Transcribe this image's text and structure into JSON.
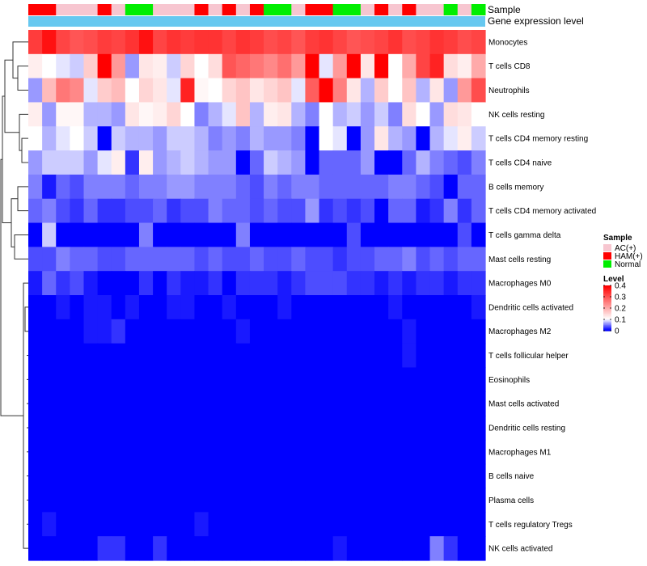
{
  "chart_data": {
    "type": "heatmap",
    "title": "",
    "column_tracks": [
      {
        "name": "Sample"
      },
      {
        "name": "Gene expression level"
      }
    ],
    "sample_groups": [
      "HAM(+)",
      "HAM(+)",
      "AC(+)",
      "AC(+)",
      "AC(+)",
      "HAM(+)",
      "AC(+)",
      "Normal",
      "Normal",
      "AC(+)",
      "AC(+)",
      "AC(+)",
      "HAM(+)",
      "AC(+)",
      "HAM(+)",
      "AC(+)",
      "HAM(+)",
      "Normal",
      "Normal",
      "AC(+)",
      "HAM(+)",
      "HAM(+)",
      "Normal",
      "Normal",
      "AC(+)",
      "HAM(+)",
      "AC(+)",
      "HAM(+)",
      "AC(+)",
      "AC(+)",
      "Normal",
      "AC(+)",
      "Normal"
    ],
    "group_colors": {
      "AC(+)": "#f7c6d0",
      "HAM(+)": "#ff0000",
      "Normal": "#00ee00"
    },
    "expression_track_color": "#66c8f0",
    "rows": [
      "Monocytes",
      "T cells CD8",
      "Neutrophils",
      "NK cells resting",
      "T cells CD4 memory resting",
      "T cells CD4 naive",
      "B cells memory",
      "T cells CD4 memory activated",
      "T cells gamma delta",
      "Mast cells resting",
      "Macrophages M0",
      "Dendritic cells activated",
      "Macrophages M2",
      "T cells follicular helper",
      "Eosinophils",
      "Mast cells activated",
      "Dendritic cells resting",
      "Macrophages M1",
      "B cells naive",
      "Plasma cells",
      "T cells regulatory  Tregs",
      "NK cells activated"
    ],
    "values": [
      [
        0.33,
        0.38,
        0.32,
        0.3,
        0.31,
        0.33,
        0.32,
        0.34,
        0.38,
        0.32,
        0.34,
        0.33,
        0.34,
        0.34,
        0.32,
        0.34,
        0.33,
        0.31,
        0.32,
        0.3,
        0.33,
        0.34,
        0.32,
        0.3,
        0.31,
        0.32,
        0.34,
        0.31,
        0.32,
        0.34,
        0.33,
        0.31,
        0.32
      ],
      [
        0.12,
        0.1,
        0.09,
        0.08,
        0.16,
        0.4,
        0.22,
        0.06,
        0.13,
        0.12,
        0.08,
        0.15,
        0.1,
        0.14,
        0.3,
        0.28,
        0.26,
        0.24,
        0.27,
        0.22,
        0.4,
        0.09,
        0.22,
        0.4,
        0.13,
        0.4,
        0.1,
        0.2,
        0.32,
        0.36,
        0.14,
        0.12,
        0.2
      ],
      [
        0.06,
        0.18,
        0.26,
        0.24,
        0.09,
        0.16,
        0.18,
        0.1,
        0.15,
        0.13,
        0.09,
        0.36,
        0.11,
        0.1,
        0.15,
        0.17,
        0.13,
        0.15,
        0.17,
        0.09,
        0.29,
        0.4,
        0.25,
        0.13,
        0.07,
        0.16,
        0.1,
        0.17,
        0.07,
        0.13,
        0.06,
        0.22,
        0.31
      ],
      [
        0.12,
        0.06,
        0.11,
        0.11,
        0.07,
        0.07,
        0.06,
        0.13,
        0.11,
        0.12,
        0.15,
        0.1,
        0.05,
        0.07,
        0.09,
        0.17,
        0.07,
        0.12,
        0.13,
        0.07,
        0.05,
        0.1,
        0.07,
        0.08,
        0.06,
        0.08,
        0.05,
        0.14,
        0.1,
        0.06,
        0.14,
        0.13,
        0.1
      ],
      [
        0.1,
        0.07,
        0.09,
        0.1,
        0.08,
        0.0,
        0.08,
        0.07,
        0.07,
        0.06,
        0.08,
        0.08,
        0.07,
        0.05,
        0.06,
        0.05,
        0.07,
        0.06,
        0.06,
        0.05,
        0.0,
        0.1,
        0.09,
        0.0,
        0.06,
        0.13,
        0.07,
        0.06,
        0.0,
        0.07,
        0.09,
        0.12,
        0.08
      ],
      [
        0.06,
        0.08,
        0.08,
        0.08,
        0.06,
        0.09,
        0.12,
        0.02,
        0.12,
        0.06,
        0.07,
        0.08,
        0.07,
        0.06,
        0.06,
        0.0,
        0.04,
        0.08,
        0.07,
        0.06,
        0.0,
        0.04,
        0.04,
        0.04,
        0.06,
        0.0,
        0.0,
        0.04,
        0.07,
        0.05,
        0.04,
        0.03,
        0.05
      ],
      [
        0.05,
        0.01,
        0.04,
        0.03,
        0.05,
        0.05,
        0.05,
        0.04,
        0.05,
        0.05,
        0.06,
        0.06,
        0.05,
        0.05,
        0.05,
        0.04,
        0.03,
        0.05,
        0.04,
        0.05,
        0.05,
        0.04,
        0.04,
        0.04,
        0.04,
        0.04,
        0.05,
        0.05,
        0.04,
        0.03,
        0.0,
        0.04,
        0.04
      ],
      [
        0.04,
        0.05,
        0.03,
        0.02,
        0.04,
        0.02,
        0.02,
        0.03,
        0.03,
        0.04,
        0.02,
        0.03,
        0.03,
        0.05,
        0.04,
        0.04,
        0.03,
        0.04,
        0.03,
        0.03,
        0.06,
        0.02,
        0.03,
        0.02,
        0.03,
        0.0,
        0.04,
        0.04,
        0.01,
        0.02,
        0.05,
        0.02,
        0.04
      ],
      [
        0.0,
        0.08,
        0.0,
        0.0,
        0.0,
        0.0,
        0.0,
        0.0,
        0.05,
        0.0,
        0.0,
        0.0,
        0.0,
        0.0,
        0.0,
        0.05,
        0.0,
        0.0,
        0.0,
        0.0,
        0.0,
        0.0,
        0.0,
        0.03,
        0.0,
        0.0,
        0.0,
        0.0,
        0.0,
        0.0,
        0.0,
        0.03,
        0.0
      ],
      [
        0.03,
        0.03,
        0.05,
        0.04,
        0.04,
        0.03,
        0.03,
        0.04,
        0.04,
        0.04,
        0.04,
        0.04,
        0.03,
        0.04,
        0.03,
        0.03,
        0.04,
        0.03,
        0.03,
        0.04,
        0.03,
        0.03,
        0.02,
        0.03,
        0.03,
        0.04,
        0.04,
        0.05,
        0.03,
        0.04,
        0.03,
        0.04,
        0.04
      ],
      [
        0.01,
        0.04,
        0.02,
        0.03,
        0.01,
        0.0,
        0.0,
        0.0,
        0.02,
        0.0,
        0.02,
        0.01,
        0.01,
        0.02,
        0.0,
        0.02,
        0.02,
        0.02,
        0.01,
        0.02,
        0.03,
        0.03,
        0.03,
        0.02,
        0.02,
        0.01,
        0.02,
        0.01,
        0.02,
        0.02,
        0.01,
        0.02,
        0.02
      ],
      [
        0.0,
        0.0,
        0.01,
        0.0,
        0.01,
        0.01,
        0.0,
        0.01,
        0.0,
        0.0,
        0.01,
        0.01,
        0.0,
        0.0,
        0.01,
        0.0,
        0.0,
        0.0,
        0.01,
        0.0,
        0.0,
        0.0,
        0.0,
        0.0,
        0.0,
        0.0,
        0.01,
        0.0,
        0.0,
        0.0,
        0.0,
        0.0,
        0.01
      ],
      [
        0.0,
        0.0,
        0.0,
        0.0,
        0.01,
        0.01,
        0.02,
        0.0,
        0.0,
        0.0,
        0.0,
        0.0,
        0.0,
        0.0,
        0.0,
        0.01,
        0.0,
        0.0,
        0.0,
        0.0,
        0.0,
        0.0,
        0.0,
        0.0,
        0.0,
        0.0,
        0.0,
        0.01,
        0.0,
        0.0,
        0.0,
        0.0,
        0.0
      ],
      [
        0.0,
        0.0,
        0.0,
        0.0,
        0.0,
        0.0,
        0.0,
        0.0,
        0.0,
        0.0,
        0.0,
        0.0,
        0.0,
        0.0,
        0.0,
        0.0,
        0.0,
        0.0,
        0.0,
        0.0,
        0.0,
        0.0,
        0.0,
        0.0,
        0.0,
        0.0,
        0.0,
        0.01,
        0.0,
        0.0,
        0.0,
        0.0,
        0.0
      ],
      [
        0.0,
        0.0,
        0.0,
        0.0,
        0.0,
        0.0,
        0.0,
        0.0,
        0.0,
        0.0,
        0.0,
        0.0,
        0.0,
        0.0,
        0.0,
        0.0,
        0.0,
        0.0,
        0.0,
        0.0,
        0.0,
        0.0,
        0.0,
        0.0,
        0.0,
        0.0,
        0.0,
        0.0,
        0.0,
        0.0,
        0.0,
        0.0,
        0.0
      ],
      [
        0.0,
        0.0,
        0.0,
        0.0,
        0.0,
        0.0,
        0.0,
        0.0,
        0.0,
        0.0,
        0.0,
        0.0,
        0.0,
        0.0,
        0.0,
        0.0,
        0.0,
        0.0,
        0.0,
        0.0,
        0.0,
        0.0,
        0.0,
        0.0,
        0.0,
        0.0,
        0.0,
        0.0,
        0.0,
        0.0,
        0.0,
        0.0,
        0.0
      ],
      [
        0.0,
        0.0,
        0.0,
        0.0,
        0.0,
        0.0,
        0.0,
        0.0,
        0.0,
        0.0,
        0.0,
        0.0,
        0.0,
        0.0,
        0.0,
        0.0,
        0.0,
        0.0,
        0.0,
        0.0,
        0.0,
        0.0,
        0.0,
        0.0,
        0.0,
        0.0,
        0.0,
        0.0,
        0.0,
        0.0,
        0.0,
        0.0,
        0.0
      ],
      [
        0.0,
        0.0,
        0.0,
        0.0,
        0.0,
        0.0,
        0.0,
        0.0,
        0.0,
        0.0,
        0.0,
        0.0,
        0.0,
        0.0,
        0.0,
        0.0,
        0.0,
        0.0,
        0.0,
        0.0,
        0.0,
        0.0,
        0.0,
        0.0,
        0.0,
        0.0,
        0.0,
        0.0,
        0.0,
        0.0,
        0.0,
        0.0,
        0.0
      ],
      [
        0.0,
        0.0,
        0.0,
        0.0,
        0.0,
        0.0,
        0.0,
        0.0,
        0.0,
        0.0,
        0.0,
        0.0,
        0.0,
        0.0,
        0.0,
        0.0,
        0.0,
        0.0,
        0.0,
        0.0,
        0.0,
        0.0,
        0.0,
        0.0,
        0.0,
        0.0,
        0.0,
        0.0,
        0.0,
        0.0,
        0.0,
        0.0,
        0.0
      ],
      [
        0.0,
        0.0,
        0.0,
        0.0,
        0.0,
        0.0,
        0.0,
        0.0,
        0.0,
        0.0,
        0.0,
        0.0,
        0.0,
        0.0,
        0.0,
        0.0,
        0.0,
        0.0,
        0.0,
        0.0,
        0.0,
        0.0,
        0.0,
        0.0,
        0.0,
        0.0,
        0.0,
        0.0,
        0.0,
        0.0,
        0.0,
        0.0,
        0.0
      ],
      [
        0.0,
        0.01,
        0.0,
        0.0,
        0.0,
        0.0,
        0.0,
        0.0,
        0.0,
        0.0,
        0.0,
        0.0,
        0.01,
        0.0,
        0.0,
        0.0,
        0.0,
        0.0,
        0.0,
        0.0,
        0.0,
        0.0,
        0.0,
        0.0,
        0.0,
        0.0,
        0.0,
        0.0,
        0.0,
        0.0,
        0.0,
        0.0,
        0.0
      ],
      [
        0.0,
        0.0,
        0.0,
        0.0,
        0.0,
        0.02,
        0.02,
        0.0,
        0.0,
        0.02,
        0.0,
        0.0,
        0.0,
        0.0,
        0.0,
        0.0,
        0.0,
        0.0,
        0.0,
        0.0,
        0.0,
        0.0,
        0.01,
        0.0,
        0.0,
        0.0,
        0.0,
        0.0,
        0.0,
        0.05,
        0.02,
        0.0,
        0.0
      ]
    ],
    "color_scale": {
      "min": 0,
      "mid": 0.1,
      "max": 0.4,
      "low": "#0000ff",
      "middle": "#ffffff",
      "high": "#ff0000"
    },
    "legend": {
      "sample_title": "Sample",
      "sample_entries": [
        {
          "label": "AC(+)",
          "color": "#f7c6d0"
        },
        {
          "label": "HAM(+)",
          "color": "#ff0000"
        },
        {
          "label": "Normal",
          "color": "#00ee00"
        }
      ],
      "level_title": "Level",
      "level_ticks": [
        "0.4",
        "0.3",
        "0.2",
        "0.1",
        "0"
      ],
      "level_tick_values": [
        0.4,
        0.3,
        0.2,
        0.1,
        0
      ]
    },
    "dendrogram": {
      "description": "hierarchical clustering of rows",
      "merges": [
        [
          1,
          2
        ],
        [
          4,
          5
        ],
        [
          3,
          "4-5"
        ],
        [
          0,
          "1-2"
        ],
        [
          "0-1-2",
          "3-4-5"
        ],
        [
          6,
          7
        ],
        [
          8,
          9
        ],
        [
          11,
          12
        ]
      ]
    }
  }
}
